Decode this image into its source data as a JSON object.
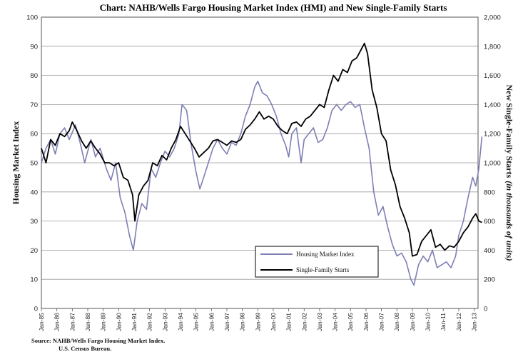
{
  "chart_data": {
    "type": "line",
    "title": "Chart:  NAHB/Wells Fargo Housing Market Index (HMI) and New Single-Family Starts",
    "ylabel_left": "Housing Market Index",
    "ylabel_right": "New Single-Family Starts",
    "ylabel_right_italic": "(in thousands of units)",
    "ylim_left": [
      0,
      100
    ],
    "ylim_right": [
      0,
      2000
    ],
    "yticks_left": [
      "0",
      "10",
      "20",
      "30",
      "40",
      "50",
      "60",
      "70",
      "80",
      "90",
      "100"
    ],
    "yticks_right": [
      "0",
      "200",
      "400",
      "600",
      "800",
      "1,000",
      "1,200",
      "1,400",
      "1,600",
      "1,800",
      "2,000"
    ],
    "x_range": [
      1985.0,
      2013.25
    ],
    "x_tick_labels": [
      "Jan-85",
      "Jan-86",
      "Jan-87",
      "Jan-88",
      "Jan-89",
      "Jan-90",
      "Jan-91",
      "Jan-92",
      "Jan-93",
      "Jan-94",
      "Jan-95",
      "Jan-96",
      "Jan-97",
      "Jan-98",
      "Jan-99",
      "Jan-00",
      "Jan-01",
      "Jan-02",
      "Jan-03",
      "Jan-04",
      "Jan-05",
      "Jan-06",
      "Jan-07",
      "Jan-08",
      "Jan-09",
      "Jan-10",
      "Jan-11",
      "Jan-12",
      "Jan-13"
    ],
    "legend_position": "bottom-center",
    "grid": "horizontal",
    "series": [
      {
        "name": "Housing Market Index",
        "axis": "left",
        "color": "#7d7fb5",
        "points": [
          [
            1985.0,
            50
          ],
          [
            1985.3,
            55
          ],
          [
            1985.6,
            58
          ],
          [
            1985.9,
            53
          ],
          [
            1986.2,
            60
          ],
          [
            1986.5,
            62
          ],
          [
            1986.8,
            58
          ],
          [
            1987.2,
            63
          ],
          [
            1987.5,
            57
          ],
          [
            1987.8,
            50
          ],
          [
            1988.2,
            58
          ],
          [
            1988.5,
            52
          ],
          [
            1988.8,
            55
          ],
          [
            1989.2,
            48
          ],
          [
            1989.5,
            44
          ],
          [
            1989.8,
            50
          ],
          [
            1990.1,
            38
          ],
          [
            1990.4,
            33
          ],
          [
            1990.7,
            25
          ],
          [
            1990.95,
            20
          ],
          [
            1991.2,
            30
          ],
          [
            1991.5,
            36
          ],
          [
            1991.8,
            34
          ],
          [
            1992.1,
            48
          ],
          [
            1992.4,
            45
          ],
          [
            1992.7,
            50
          ],
          [
            1993.0,
            54
          ],
          [
            1993.3,
            52
          ],
          [
            1993.6,
            55
          ],
          [
            1993.9,
            60
          ],
          [
            1994.1,
            70
          ],
          [
            1994.4,
            68
          ],
          [
            1994.7,
            56
          ],
          [
            1995.0,
            47
          ],
          [
            1995.25,
            41
          ],
          [
            1995.5,
            45
          ],
          [
            1995.8,
            50
          ],
          [
            1996.1,
            55
          ],
          [
            1996.4,
            58
          ],
          [
            1996.7,
            55
          ],
          [
            1997.0,
            53
          ],
          [
            1997.3,
            57
          ],
          [
            1997.6,
            56
          ],
          [
            1997.9,
            60
          ],
          [
            1998.2,
            66
          ],
          [
            1998.5,
            70
          ],
          [
            1998.8,
            76
          ],
          [
            1999.0,
            78
          ],
          [
            1999.3,
            74
          ],
          [
            1999.6,
            73
          ],
          [
            1999.9,
            70
          ],
          [
            2000.2,
            66
          ],
          [
            2000.5,
            60
          ],
          [
            2000.8,
            56
          ],
          [
            2001.0,
            52
          ],
          [
            2001.2,
            60
          ],
          [
            2001.5,
            62
          ],
          [
            2001.8,
            50
          ],
          [
            2002.0,
            58
          ],
          [
            2002.3,
            60
          ],
          [
            2002.6,
            62
          ],
          [
            2002.9,
            57
          ],
          [
            2003.2,
            58
          ],
          [
            2003.5,
            62
          ],
          [
            2003.8,
            68
          ],
          [
            2004.1,
            70
          ],
          [
            2004.4,
            68
          ],
          [
            2004.7,
            70
          ],
          [
            2005.0,
            71
          ],
          [
            2005.3,
            69
          ],
          [
            2005.6,
            70
          ],
          [
            2005.9,
            62
          ],
          [
            2006.2,
            55
          ],
          [
            2006.5,
            40
          ],
          [
            2006.8,
            32
          ],
          [
            2007.1,
            35
          ],
          [
            2007.4,
            28
          ],
          [
            2007.7,
            22
          ],
          [
            2008.0,
            18
          ],
          [
            2008.3,
            19
          ],
          [
            2008.6,
            16
          ],
          [
            2008.9,
            10
          ],
          [
            2009.1,
            8
          ],
          [
            2009.4,
            15
          ],
          [
            2009.7,
            18
          ],
          [
            2010.0,
            16
          ],
          [
            2010.3,
            20
          ],
          [
            2010.6,
            14
          ],
          [
            2010.9,
            15
          ],
          [
            2011.2,
            16
          ],
          [
            2011.5,
            14
          ],
          [
            2011.8,
            18
          ],
          [
            2012.0,
            25
          ],
          [
            2012.3,
            30
          ],
          [
            2012.6,
            38
          ],
          [
            2012.9,
            45
          ],
          [
            2013.1,
            42
          ],
          [
            2013.3,
            48
          ],
          [
            2013.5,
            59
          ]
        ]
      },
      {
        "name": "Single-Family Starts",
        "axis": "right",
        "color": "#000000",
        "points": [
          [
            1985.0,
            1100
          ],
          [
            1985.3,
            1000
          ],
          [
            1985.6,
            1160
          ],
          [
            1985.9,
            1120
          ],
          [
            1986.2,
            1200
          ],
          [
            1986.5,
            1180
          ],
          [
            1986.8,
            1220
          ],
          [
            1987.0,
            1280
          ],
          [
            1987.3,
            1220
          ],
          [
            1987.6,
            1150
          ],
          [
            1987.9,
            1100
          ],
          [
            1988.2,
            1150
          ],
          [
            1988.5,
            1100
          ],
          [
            1988.8,
            1060
          ],
          [
            1989.1,
            1000
          ],
          [
            1989.4,
            1000
          ],
          [
            1989.7,
            980
          ],
          [
            1990.0,
            1000
          ],
          [
            1990.3,
            900
          ],
          [
            1990.6,
            880
          ],
          [
            1990.9,
            780
          ],
          [
            1991.05,
            600
          ],
          [
            1991.3,
            780
          ],
          [
            1991.6,
            840
          ],
          [
            1991.9,
            880
          ],
          [
            1992.2,
            1000
          ],
          [
            1992.5,
            980
          ],
          [
            1992.8,
            1050
          ],
          [
            1993.1,
            1020
          ],
          [
            1993.4,
            1100
          ],
          [
            1993.7,
            1160
          ],
          [
            1994.0,
            1250
          ],
          [
            1994.3,
            1200
          ],
          [
            1994.6,
            1150
          ],
          [
            1994.9,
            1100
          ],
          [
            1995.2,
            1040
          ],
          [
            1995.5,
            1070
          ],
          [
            1995.8,
            1100
          ],
          [
            1996.1,
            1150
          ],
          [
            1996.4,
            1160
          ],
          [
            1996.7,
            1140
          ],
          [
            1997.0,
            1120
          ],
          [
            1997.3,
            1150
          ],
          [
            1997.6,
            1140
          ],
          [
            1997.9,
            1160
          ],
          [
            1998.2,
            1230
          ],
          [
            1998.5,
            1260
          ],
          [
            1998.8,
            1300
          ],
          [
            1999.1,
            1350
          ],
          [
            1999.4,
            1300
          ],
          [
            1999.7,
            1320
          ],
          [
            2000.0,
            1300
          ],
          [
            2000.3,
            1250
          ],
          [
            2000.6,
            1220
          ],
          [
            2000.9,
            1200
          ],
          [
            2001.2,
            1270
          ],
          [
            2001.5,
            1280
          ],
          [
            2001.8,
            1250
          ],
          [
            2002.1,
            1300
          ],
          [
            2002.4,
            1320
          ],
          [
            2002.7,
            1360
          ],
          [
            2003.0,
            1400
          ],
          [
            2003.3,
            1380
          ],
          [
            2003.6,
            1500
          ],
          [
            2003.9,
            1600
          ],
          [
            2004.2,
            1560
          ],
          [
            2004.5,
            1640
          ],
          [
            2004.8,
            1620
          ],
          [
            2005.1,
            1700
          ],
          [
            2005.4,
            1720
          ],
          [
            2005.7,
            1780
          ],
          [
            2005.9,
            1820
          ],
          [
            2006.1,
            1750
          ],
          [
            2006.4,
            1500
          ],
          [
            2006.7,
            1380
          ],
          [
            2007.0,
            1200
          ],
          [
            2007.3,
            1150
          ],
          [
            2007.6,
            950
          ],
          [
            2007.9,
            850
          ],
          [
            2008.2,
            700
          ],
          [
            2008.5,
            620
          ],
          [
            2008.8,
            520
          ],
          [
            2009.0,
            360
          ],
          [
            2009.3,
            370
          ],
          [
            2009.6,
            460
          ],
          [
            2009.9,
            500
          ],
          [
            2010.2,
            540
          ],
          [
            2010.5,
            420
          ],
          [
            2010.8,
            440
          ],
          [
            2011.1,
            400
          ],
          [
            2011.4,
            430
          ],
          [
            2011.7,
            420
          ],
          [
            2012.0,
            460
          ],
          [
            2012.3,
            520
          ],
          [
            2012.6,
            560
          ],
          [
            2012.9,
            620
          ],
          [
            2013.1,
            650
          ],
          [
            2013.3,
            600
          ],
          [
            2013.5,
            590
          ]
        ]
      }
    ]
  },
  "source": {
    "line1": "Source: NAHB/Wells Fargo Housing Market Index.",
    "line2": "U.S. Census Bureau."
  }
}
